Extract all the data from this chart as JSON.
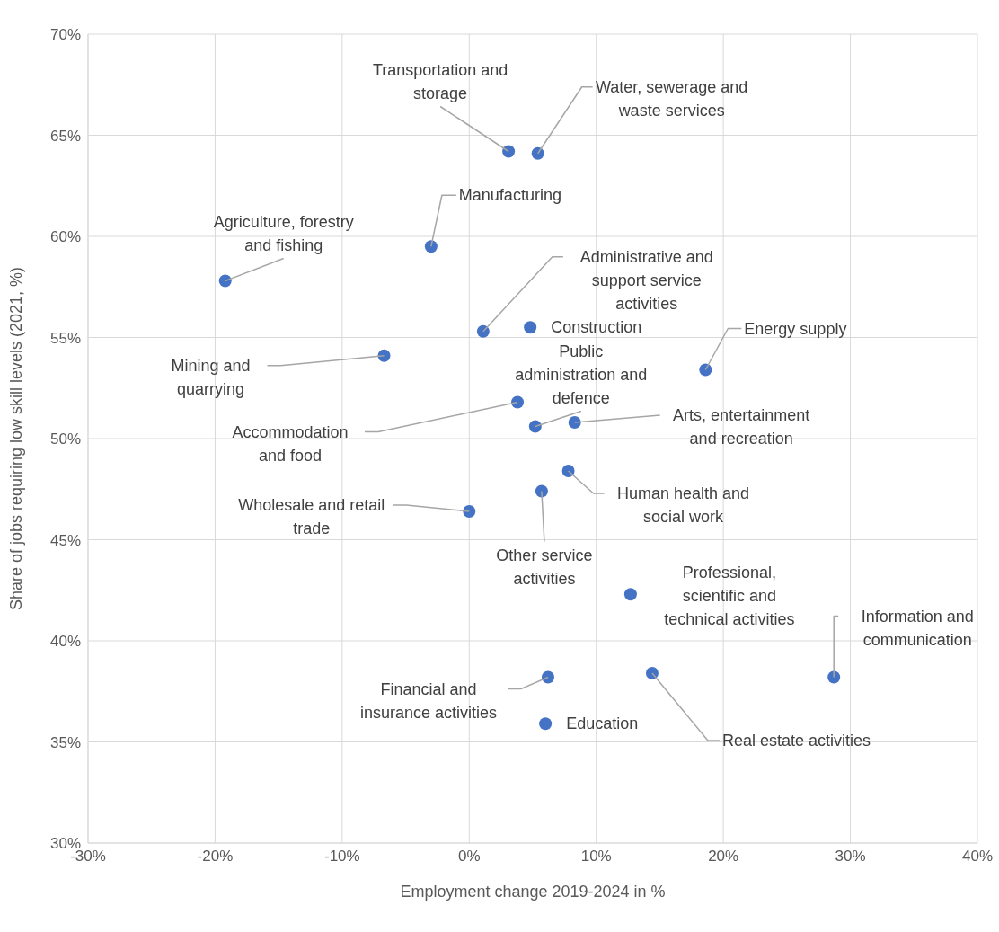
{
  "chart_data": {
    "type": "scatter",
    "xlabel": "Employment change 2019-2024 in %",
    "ylabel": "Share of jobs requiring low skill levels (2021, %)",
    "color": "#4472c4",
    "marker": "circle",
    "grid": true,
    "x": [
      3.1,
      5.4,
      -3.0,
      -19.2,
      1.1,
      4.8,
      18.6,
      -6.7,
      3.8,
      5.2,
      8.3,
      7.8,
      5.7,
      0.0,
      12.7,
      28.7,
      14.4,
      6.2,
      6.0
    ],
    "values": [
      64.2,
      64.1,
      59.5,
      57.8,
      55.3,
      55.5,
      53.4,
      54.1,
      51.8,
      50.6,
      50.8,
      48.4,
      47.4,
      46.4,
      42.3,
      38.2,
      38.4,
      38.2,
      35.9
    ],
    "xlim": [
      -30,
      40
    ],
    "xticks": [
      {
        "value": -30,
        "label": "-30%"
      },
      {
        "value": -20,
        "label": "-20%"
      },
      {
        "value": -10,
        "label": "-10%"
      },
      {
        "value": 0,
        "label": "0%"
      },
      {
        "value": 10,
        "label": "10%"
      },
      {
        "value": 20,
        "label": "20%"
      },
      {
        "value": 30,
        "label": "30%"
      },
      {
        "value": 40,
        "label": "40%"
      }
    ],
    "ylim": [
      30,
      70
    ],
    "yticks": [
      {
        "value": 30,
        "label": "30%"
      },
      {
        "value": 35,
        "label": "35%"
      },
      {
        "value": 40,
        "label": "40%"
      },
      {
        "value": 45,
        "label": "45%"
      },
      {
        "value": 50,
        "label": "50%"
      },
      {
        "value": 55,
        "label": "55%"
      },
      {
        "value": 60,
        "label": "60%"
      },
      {
        "value": 65,
        "label": "65%"
      },
      {
        "value": 70,
        "label": "70%"
      }
    ],
    "annotations": [
      {
        "text": "Transportation and storage",
        "x": 3.1,
        "y": 64.2
      },
      {
        "text": "Water, sewerage and waste services",
        "x": 5.4,
        "y": 64.1
      },
      {
        "text": "Manufacturing",
        "x": -3.0,
        "y": 59.5
      },
      {
        "text": "Agriculture, forestry and fishing",
        "x": -19.2,
        "y": 57.8
      },
      {
        "text": "Administrative and support service activities",
        "x": 1.1,
        "y": 55.3
      },
      {
        "text": "Construction",
        "x": 4.8,
        "y": 55.5
      },
      {
        "text": "Energy supply",
        "x": 18.6,
        "y": 53.4
      },
      {
        "text": "Mining and quarrying",
        "x": -6.7,
        "y": 54.1
      },
      {
        "text": "Accommodation and food",
        "x": 3.8,
        "y": 51.8
      },
      {
        "text": "Public administration and defence",
        "x": 5.2,
        "y": 50.6
      },
      {
        "text": "Arts, entertainment and recreation",
        "x": 8.3,
        "y": 50.8
      },
      {
        "text": "Human health and social work",
        "x": 7.8,
        "y": 48.4
      },
      {
        "text": "Other service activities",
        "x": 5.7,
        "y": 47.4
      },
      {
        "text": "Wholesale and retail trade",
        "x": 0.0,
        "y": 46.4
      },
      {
        "text": "Professional, scientific and technical activities",
        "x": 12.7,
        "y": 42.3
      },
      {
        "text": "Information and communication",
        "x": 28.7,
        "y": 38.2
      },
      {
        "text": "Real estate activities",
        "x": 14.4,
        "y": 38.4
      },
      {
        "text": "Financial and insurance activities",
        "x": 6.2,
        "y": 38.2
      },
      {
        "text": "Education",
        "x": 6.0,
        "y": 35.9
      }
    ]
  }
}
